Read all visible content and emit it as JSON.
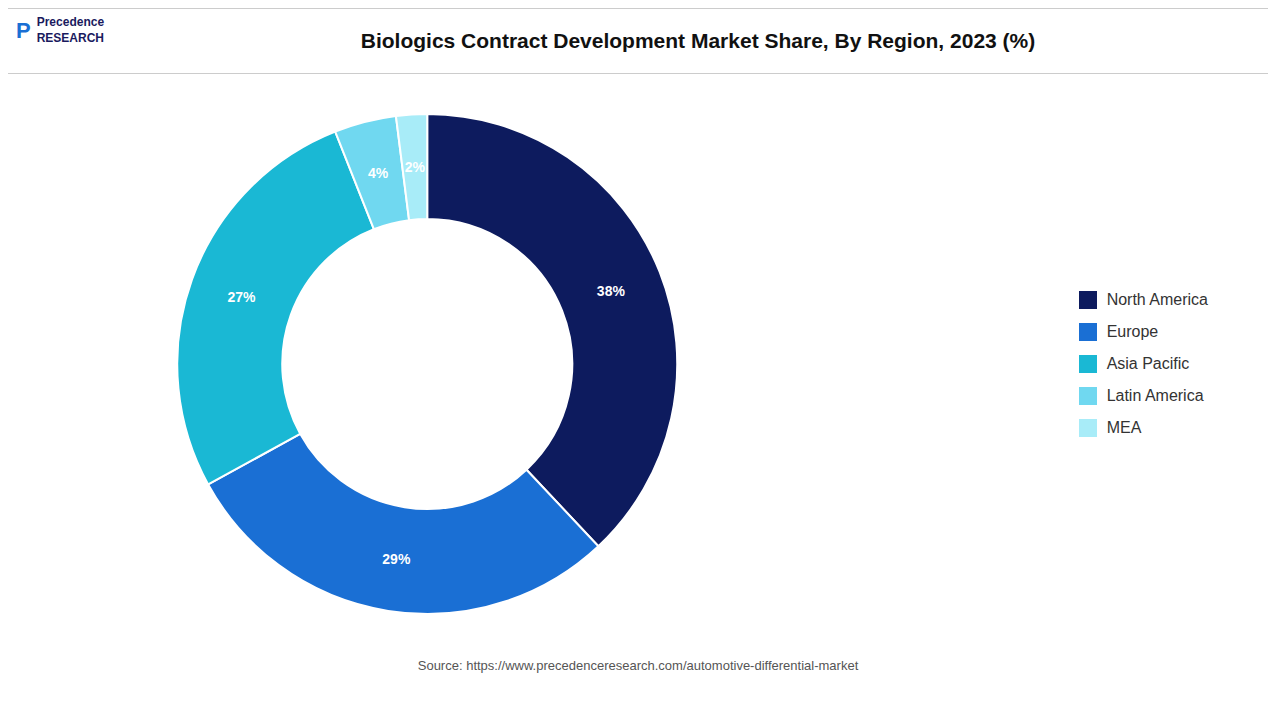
{
  "chart_data": {
    "type": "pie",
    "title": "Biologics Contract Development Market Share, By Region, 2023 (%)",
    "categories": [
      "North America",
      "Europe",
      "Asia Pacific",
      "Latin America",
      "MEA"
    ],
    "values": [
      38,
      29,
      27,
      4,
      2
    ],
    "value_labels": [
      "38%",
      "29%",
      "27%",
      "4%",
      "2%"
    ],
    "colors": [
      "#0d1b5e",
      "#1a6fd4",
      "#1ab8d4",
      "#70d8f0",
      "#a8ecf8"
    ],
    "data_labels": true,
    "legend": "right",
    "annotations": [
      "Source: https://www.precedenceresearch.com/automotive-differential-market",
      "Precedence\nRESEARCH",
      "P"
    ]
  }
}
